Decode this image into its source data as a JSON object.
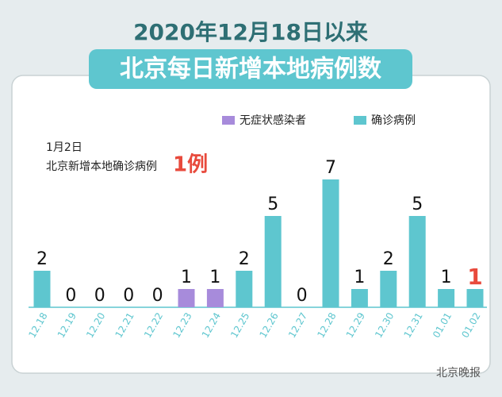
{
  "chart_data": {
    "type": "bar",
    "title": "2020年12月18日以来",
    "subtitle": "北京每日新增本地病例数",
    "categories": [
      "12.18",
      "12.19",
      "12.20",
      "12.21",
      "12.22",
      "12.23",
      "12.24",
      "12.25",
      "12.26",
      "12.27",
      "12.28",
      "12.29",
      "12.30",
      "12.31",
      "01.01",
      "01.02"
    ],
    "series": [
      {
        "name": "无症状感染者",
        "color": "#a78bdb",
        "values": [
          null,
          null,
          null,
          null,
          null,
          1,
          1,
          null,
          null,
          null,
          null,
          null,
          null,
          null,
          null,
          null
        ]
      },
      {
        "name": "确诊病例",
        "color": "#5ec6cf",
        "values": [
          2,
          0,
          0,
          0,
          0,
          null,
          null,
          2,
          5,
          0,
          7,
          1,
          2,
          5,
          1,
          1
        ]
      }
    ],
    "highlight_color": "#e84a3c",
    "annotation": [
      "1月2日",
      "北京新增本地确诊病例",
      "1例"
    ],
    "source": "北京晚报"
  }
}
